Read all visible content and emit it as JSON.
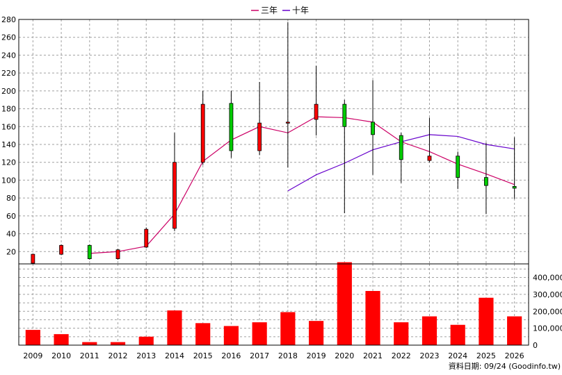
{
  "legend": [
    {
      "label": "三年",
      "color": "#CC0066"
    },
    {
      "label": "十年",
      "color": "#6600CC"
    }
  ],
  "footer": "資料日期: 09/24  (Goodinfo.tw)",
  "colors": {
    "up": "#ff0000",
    "down": "#00cc00",
    "volume": "#ff0000",
    "wick": "#000000"
  },
  "chart_data": {
    "type": "candlestick",
    "categories": [
      "2009",
      "2010",
      "2011",
      "2012",
      "2013",
      "2014",
      "2015",
      "2016",
      "2017",
      "2018",
      "2019",
      "2020",
      "2021",
      "2022",
      "2023",
      "2024",
      "2025",
      "2026"
    ],
    "price_axis": {
      "ylim": [
        0,
        280
      ],
      "ticks": [
        20,
        40,
        60,
        80,
        100,
        120,
        140,
        160,
        180,
        200,
        220,
        240,
        260,
        280
      ]
    },
    "volume_axis": {
      "ylim": [
        0,
        480000
      ],
      "ticks": [
        0,
        100000,
        200000,
        300000,
        400000
      ],
      "tick_labels": [
        "0",
        "100,000",
        "200,000",
        "300,000",
        "400,000"
      ]
    },
    "ohlc": [
      {
        "year": "2009",
        "open": 7,
        "high": 17,
        "low": 6,
        "close": 17,
        "dir": "up"
      },
      {
        "year": "2010",
        "open": 17,
        "high": 28,
        "low": 16,
        "close": 27,
        "dir": "up"
      },
      {
        "year": "2011",
        "open": 27,
        "high": 28,
        "low": 11,
        "close": 12,
        "dir": "down"
      },
      {
        "year": "2012",
        "open": 12,
        "high": 23,
        "low": 11,
        "close": 22,
        "dir": "up"
      },
      {
        "year": "2013",
        "open": 25,
        "high": 47,
        "low": 24,
        "close": 45,
        "dir": "up"
      },
      {
        "year": "2014",
        "open": 46,
        "high": 153,
        "low": 43,
        "close": 120,
        "dir": "up"
      },
      {
        "year": "2015",
        "open": 120,
        "high": 200,
        "low": 117,
        "close": 185,
        "dir": "up"
      },
      {
        "year": "2016",
        "open": 186,
        "high": 200,
        "low": 125,
        "close": 133,
        "dir": "down"
      },
      {
        "year": "2017",
        "open": 133,
        "high": 210,
        "low": 128,
        "close": 164,
        "dir": "up"
      },
      {
        "year": "2018",
        "open": 164,
        "high": 277,
        "low": 114,
        "close": 165,
        "dir": "up"
      },
      {
        "year": "2019",
        "open": 168,
        "high": 228,
        "low": 150,
        "close": 185,
        "dir": "up"
      },
      {
        "year": "2020",
        "open": 185,
        "high": 190,
        "low": 63,
        "close": 160,
        "dir": "down"
      },
      {
        "year": "2021",
        "open": 165,
        "high": 212,
        "low": 106,
        "close": 151,
        "dir": "down"
      },
      {
        "year": "2022",
        "open": 150,
        "high": 153,
        "low": 97,
        "close": 123,
        "dir": "down"
      },
      {
        "year": "2023",
        "open": 122,
        "high": 170,
        "low": 120,
        "close": 127,
        "dir": "up"
      },
      {
        "year": "2024",
        "open": 127,
        "high": 132,
        "low": 90,
        "close": 103,
        "dir": "down"
      },
      {
        "year": "2025",
        "open": 103,
        "high": 142,
        "low": 62,
        "close": 94,
        "dir": "down"
      },
      {
        "year": "2026",
        "open": 93,
        "high": 148,
        "low": 79,
        "close": 91,
        "dir": "down"
      }
    ],
    "series": [
      {
        "name": "三年",
        "color": "#CC0066",
        "x": [
          "2011",
          "2012",
          "2013",
          "2014",
          "2015",
          "2016",
          "2017",
          "2018",
          "2019",
          "2020",
          "2021",
          "2022",
          "2023",
          "2024",
          "2025",
          "2026"
        ],
        "values": [
          18,
          20,
          26,
          62,
          121,
          145,
          160,
          153,
          171,
          170,
          165,
          143,
          132,
          118,
          107,
          95
        ]
      },
      {
        "name": "十年",
        "color": "#6600CC",
        "x": [
          "2018",
          "2019",
          "2020",
          "2021",
          "2022",
          "2023",
          "2024",
          "2025",
          "2026"
        ],
        "values": [
          88,
          106,
          119,
          134,
          143,
          151,
          149,
          140,
          135
        ]
      }
    ],
    "volume": [
      90000,
      65000,
      18000,
      18000,
      50000,
      205000,
      130000,
      113000,
      135000,
      195000,
      143000,
      490000,
      320000,
      135000,
      170000,
      120000,
      280000,
      170000
    ]
  }
}
